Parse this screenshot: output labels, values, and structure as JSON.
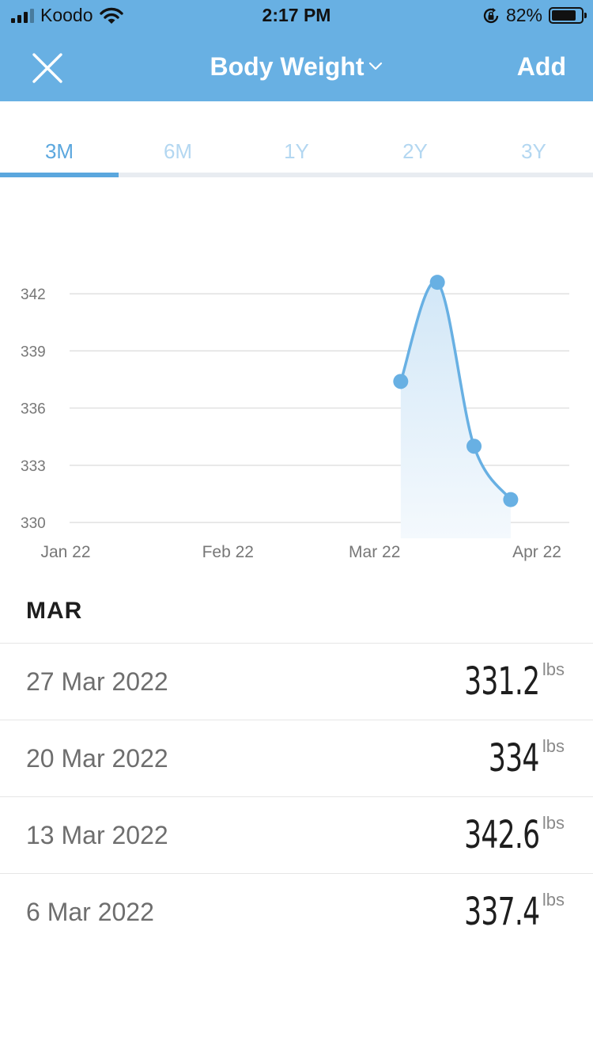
{
  "status_bar": {
    "carrier": "Koodo",
    "time": "2:17 PM",
    "battery": "82%"
  },
  "nav": {
    "title": "Body Weight",
    "add_label": "Add"
  },
  "tabs": [
    {
      "label": "3M",
      "active": true
    },
    {
      "label": "6M",
      "active": false
    },
    {
      "label": "1Y",
      "active": false
    },
    {
      "label": "2Y",
      "active": false
    },
    {
      "label": "3Y",
      "active": false
    }
  ],
  "chart_data": {
    "type": "area",
    "x_ticks": [
      "Jan 22",
      "Feb 22",
      "Mar 22",
      "Apr 22"
    ],
    "y_ticks": [
      330,
      333,
      336,
      339,
      342
    ],
    "ylim": [
      330,
      343
    ],
    "xlim": [
      "2022-01-01",
      "2022-04-01"
    ],
    "grid": true,
    "series": [
      {
        "x": [
          "2022-03-06",
          "2022-03-13",
          "2022-03-20",
          "2022-03-27"
        ],
        "y": [
          337.4,
          342.6,
          334,
          331.2
        ]
      }
    ],
    "colors": {
      "line": "#68b0e3",
      "fill_top": "#d2e7f7",
      "fill_bottom": "#f4f9fd"
    }
  },
  "list": {
    "section_title": "MAR",
    "entries": [
      {
        "date": "27 Mar 2022",
        "value": "331.2",
        "unit": "lbs"
      },
      {
        "date": "20 Mar 2022",
        "value": "334",
        "unit": "lbs"
      },
      {
        "date": "13 Mar 2022",
        "value": "342.6",
        "unit": "lbs"
      },
      {
        "date": "6 Mar 2022",
        "value": "337.4",
        "unit": "lbs"
      }
    ]
  }
}
